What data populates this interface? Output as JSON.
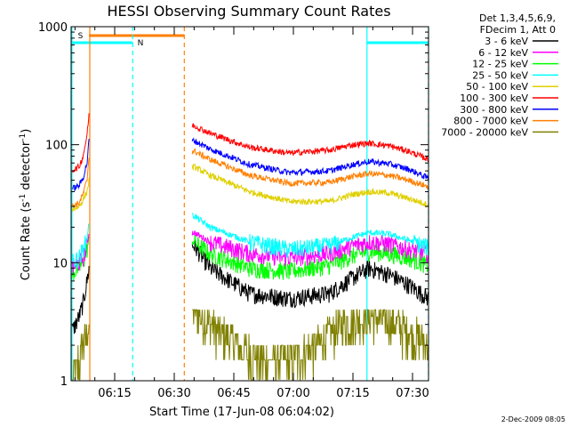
{
  "chart_data": {
    "type": "line",
    "title": "HESSI Observing Summary Count Rates",
    "xlabel": "Start Time (17-Jun-08 06:04:02)",
    "ylabel_main": "Count Rate (s",
    "ylabel_sup1": "-1",
    "ylabel_mid": " detector",
    "ylabel_sup2": "-1",
    "ylabel_end": ")",
    "yscale": "log",
    "ylim": [
      1,
      1000
    ],
    "xlim_minutes": [
      0,
      90
    ],
    "xtick_labels": [
      "06:15",
      "06:30",
      "06:45",
      "07:00",
      "07:15",
      "07:30"
    ],
    "xtick_minutes": [
      10.97,
      25.97,
      40.97,
      55.97,
      70.97,
      85.97
    ],
    "ytick_labels": [
      "1",
      "10",
      "100",
      "1000"
    ],
    "ytick_values": [
      1,
      10,
      100,
      1000
    ],
    "legend_position": "right",
    "legend_header": [
      "Det 1,3,4,5,6,9,",
      "FDecim 1, Att 0"
    ],
    "footer_date": "2-Dec-2009 08:05",
    "flag_labels": [
      "S",
      "N"
    ],
    "gap_minutes": [
      4.5,
      30.5
    ],
    "series": [
      {
        "name": "3 - 6 keV",
        "color": "#000000",
        "x": [
          0,
          2,
          3,
          4,
          4.5,
          31,
          35,
          45,
          55,
          65,
          71,
          75,
          80,
          85,
          90
        ],
        "y": [
          2.5,
          3.5,
          4.5,
          7,
          9,
          14,
          9,
          5.5,
          5,
          5.5,
          7.5,
          9,
          8,
          6.5,
          5
        ]
      },
      {
        "name": "6 - 12 keV",
        "color": "#ff00ff",
        "x": [
          0,
          2,
          3,
          4,
          4.5,
          31,
          35,
          45,
          55,
          65,
          71,
          75,
          80,
          85,
          90
        ],
        "y": [
          9,
          10,
          11,
          14,
          18,
          18,
          15,
          12,
          11,
          12,
          14,
          15,
          14.5,
          13,
          12
        ]
      },
      {
        "name": "12 - 25 keV",
        "color": "#00ff00",
        "x": [
          0,
          2,
          3,
          4,
          4.5,
          31,
          35,
          45,
          55,
          65,
          71,
          75,
          80,
          85,
          90
        ],
        "y": [
          8,
          9,
          10,
          13,
          16,
          15,
          12,
          9,
          8.5,
          9.5,
          11.5,
          12.5,
          12,
          11,
          9.5
        ]
      },
      {
        "name": "25 - 50 keV",
        "color": "#00ffff",
        "x": [
          0,
          2,
          3,
          4,
          4.5,
          31,
          35,
          45,
          55,
          65,
          71,
          75,
          80,
          85,
          90
        ],
        "y": [
          10,
          11,
          13,
          16,
          22,
          25,
          20,
          15,
          13,
          14,
          16.5,
          18,
          17.5,
          15.5,
          13.5
        ]
      },
      {
        "name": "50 - 100 keV",
        "color": "#e0d000",
        "x": [
          0,
          2,
          3,
          4,
          4.5,
          31,
          35,
          45,
          55,
          65,
          71,
          75,
          80,
          85,
          90
        ],
        "y": [
          28,
          30,
          34,
          40,
          50,
          65,
          55,
          40,
          33,
          33,
          38,
          40,
          39,
          35,
          31
        ]
      },
      {
        "name": "100 - 300 keV",
        "color": "#ff0000",
        "x": [
          0,
          2,
          3,
          4,
          4.5,
          31,
          35,
          45,
          55,
          65,
          71,
          75,
          80,
          85,
          90
        ],
        "y": [
          60,
          65,
          80,
          120,
          180,
          145,
          125,
          95,
          85,
          90,
          100,
          103,
          98,
          88,
          75
        ]
      },
      {
        "name": "300 - 800 keV",
        "color": "#0000ff",
        "x": [
          0,
          2,
          3,
          4,
          4.5,
          31,
          35,
          45,
          55,
          65,
          71,
          75,
          80,
          85,
          90
        ],
        "y": [
          42,
          45,
          52,
          70,
          110,
          108,
          92,
          68,
          58,
          60,
          68,
          72,
          69,
          62,
          52
        ]
      },
      {
        "name": "800 - 7000 keV",
        "color": "#ff7f00",
        "x": [
          0,
          2,
          3,
          4,
          4.5,
          31,
          35,
          45,
          55,
          65,
          71,
          75,
          80,
          85,
          90
        ],
        "y": [
          30,
          32,
          38,
          50,
          80,
          88,
          75,
          55,
          47,
          48,
          54,
          57,
          55,
          50,
          44
        ]
      },
      {
        "name": "7000 - 20000 keV",
        "color": "#808000",
        "x": [
          0,
          2,
          3,
          4,
          4.5,
          31,
          35,
          42,
          48,
          55,
          62,
          68,
          74,
          80,
          86,
          90
        ],
        "y": [
          1,
          1.5,
          2,
          2.5,
          3,
          4,
          3,
          2,
          1.5,
          1.5,
          2,
          3,
          3.5,
          3.2,
          2.5,
          2
        ]
      }
    ]
  }
}
